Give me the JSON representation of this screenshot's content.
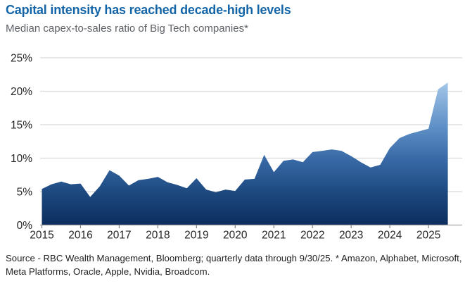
{
  "header": {
    "title": "Capital intensity has reached decade-high levels",
    "subtitle": "Median capex-to-sales ratio of Big Tech companies*"
  },
  "footer": {
    "source": "Source - RBC Wealth Management, Bloomberg; quarterly data through 9/30/25. * Amazon, Alphabet, Microsoft, Meta Platforms, Oracle, Apple, Nvidia, Broadcom."
  },
  "colors": {
    "title_blue": "#1465a8",
    "subtitle_gray": "#5d6166",
    "axis_text": "#262626",
    "gridline": "#d9d9d9",
    "axis_line": "#a6a6a6",
    "tick_mark": "#808080",
    "area_gradient_top": "#aacbeb",
    "area_gradient_mid": "#3a6ba8",
    "area_gradient_bottom": "#0c2d5e"
  },
  "chart_data": {
    "type": "area",
    "title": "Capital intensity has reached decade-high levels",
    "subtitle": "Median capex-to-sales ratio of Big Tech companies*",
    "unit": "%",
    "grid": "horizontal",
    "legend": "none",
    "ylim": [
      0,
      25
    ],
    "y_tick_values": [
      0,
      5,
      10,
      15,
      20,
      25
    ],
    "y_tick_labels": [
      "0%",
      "5%",
      "10%",
      "15%",
      "20%",
      "25%"
    ],
    "x_tick_labels": [
      "2015",
      "2016",
      "2017",
      "2018",
      "2019",
      "2020",
      "2021",
      "2022",
      "2023",
      "2024",
      "2025"
    ],
    "x": [
      "2015 Q1",
      "2015 Q2",
      "2015 Q3",
      "2015 Q4",
      "2016 Q1",
      "2016 Q2",
      "2016 Q3",
      "2016 Q4",
      "2017 Q1",
      "2017 Q2",
      "2017 Q3",
      "2017 Q4",
      "2018 Q1",
      "2018 Q2",
      "2018 Q3",
      "2018 Q4",
      "2019 Q1",
      "2019 Q2",
      "2019 Q3",
      "2019 Q4",
      "2020 Q1",
      "2020 Q2",
      "2020 Q3",
      "2020 Q4",
      "2021 Q1",
      "2021 Q2",
      "2021 Q3",
      "2021 Q4",
      "2022 Q1",
      "2022 Q2",
      "2022 Q3",
      "2022 Q4",
      "2023 Q1",
      "2023 Q2",
      "2023 Q3",
      "2023 Q4",
      "2024 Q1",
      "2024 Q2",
      "2024 Q3",
      "2024 Q4",
      "2025 Q1",
      "2025 Q2",
      "2025 Q3"
    ],
    "values": [
      5.4,
      6.1,
      6.5,
      6.1,
      6.2,
      4.2,
      5.8,
      8.2,
      7.4,
      5.9,
      6.7,
      6.9,
      7.2,
      6.4,
      6.0,
      5.5,
      7.0,
      5.3,
      4.9,
      5.3,
      5.1,
      6.8,
      6.9,
      10.5,
      7.9,
      9.6,
      9.8,
      9.4,
      10.9,
      11.1,
      11.3,
      11.1,
      10.3,
      9.4,
      8.6,
      9.0,
      11.5,
      13.0,
      13.6,
      14.0,
      14.4,
      20.3,
      21.3
    ]
  }
}
